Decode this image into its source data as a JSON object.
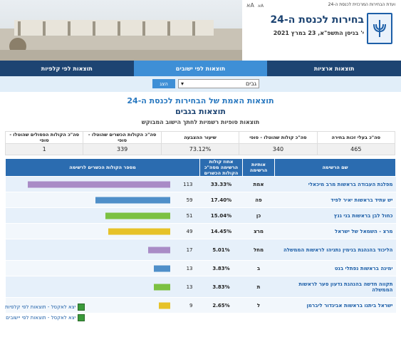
{
  "header": {
    "committee": "ועדת הבחירות המרכזית לכנסת ה-24",
    "font_controls": [
      "Aא",
      "Aא"
    ],
    "title": "בחירות לכנסת ה-24",
    "date": "י' בניסן התשפ\"א, 23 במרץ 2021"
  },
  "nav": {
    "tabs": [
      "תוצאות ארציות",
      "תוצאות לפי ישובים",
      "תוצאות לפי קלפיות"
    ],
    "active": 1
  },
  "search": {
    "value": "גבים",
    "button": "הצג"
  },
  "headings": {
    "title": "תוצאות האמת של הבחירות לכנסת ה-24",
    "subtitle": "תוצאות בגבים",
    "note": "תוצאות סופיות רשמיות לחתך הישוב המבוקש"
  },
  "summary": {
    "headers": [
      "סה\"כ בעלי זכות בחירה",
      "סה\"כ קולות שהוטלו - סופי",
      "שיעור ההצבעה",
      "סה\"כ הקולות הכשרים שהוטלו - סופי",
      "סה\"כ הקולות הפסולים שהוטלו - סופי"
    ],
    "values": [
      "465",
      "340",
      "73.12%",
      "339",
      "1"
    ]
  },
  "results": {
    "headers": [
      "שם הרשימה",
      "אותיות הרשימה",
      "אחוז קולות הרשימה מסה\"כ הקולות הכשרים",
      "מספר הקולות הכשרים לרשימה"
    ],
    "rows": [
      {
        "name": "מפלגת העבודה בראשות מרב מיכאלי",
        "letters": "אמת",
        "percent": "33.33%",
        "votes": 113,
        "color": "#a98cc6"
      },
      {
        "name": "יש עתיד בראשות יאיר לפיד",
        "letters": "פה",
        "percent": "17.40%",
        "votes": 59,
        "color": "#4f8fc9"
      },
      {
        "name": "כחול לבן בראשות בני גנץ",
        "letters": "כן",
        "percent": "15.04%",
        "votes": 51,
        "color": "#7cc142"
      },
      {
        "name": "מרצ - השמאל של ישראל",
        "letters": "מרצ",
        "percent": "14.45%",
        "votes": 49,
        "color": "#e6c229"
      },
      {
        "name": "הליכוד בהנהגת בנימין נתניהו לראשות הממשלה",
        "letters": "מחל",
        "percent": "5.01%",
        "votes": 17,
        "color": "#a98cc6"
      },
      {
        "name": "ימינה בראשות נפתלי בנט",
        "letters": "ב",
        "percent": "3.83%",
        "votes": 13,
        "color": "#4f8fc9"
      },
      {
        "name": "תקווה חדשה בהנהגת גדעון סער לראשות הממשלה",
        "letters": "ת",
        "percent": "3.83%",
        "votes": 13,
        "color": "#7cc142"
      },
      {
        "name": "ישראל ביתנו בראשות אביגדור ליברמן",
        "letters": "ל",
        "percent": "2.65%",
        "votes": 9,
        "color": "#e6c229"
      }
    ]
  },
  "links": [
    "יצא לאקסל - תוצאות לפי קלפיות",
    "יצא לאקסל - תוצאות לפי יישובים"
  ]
}
